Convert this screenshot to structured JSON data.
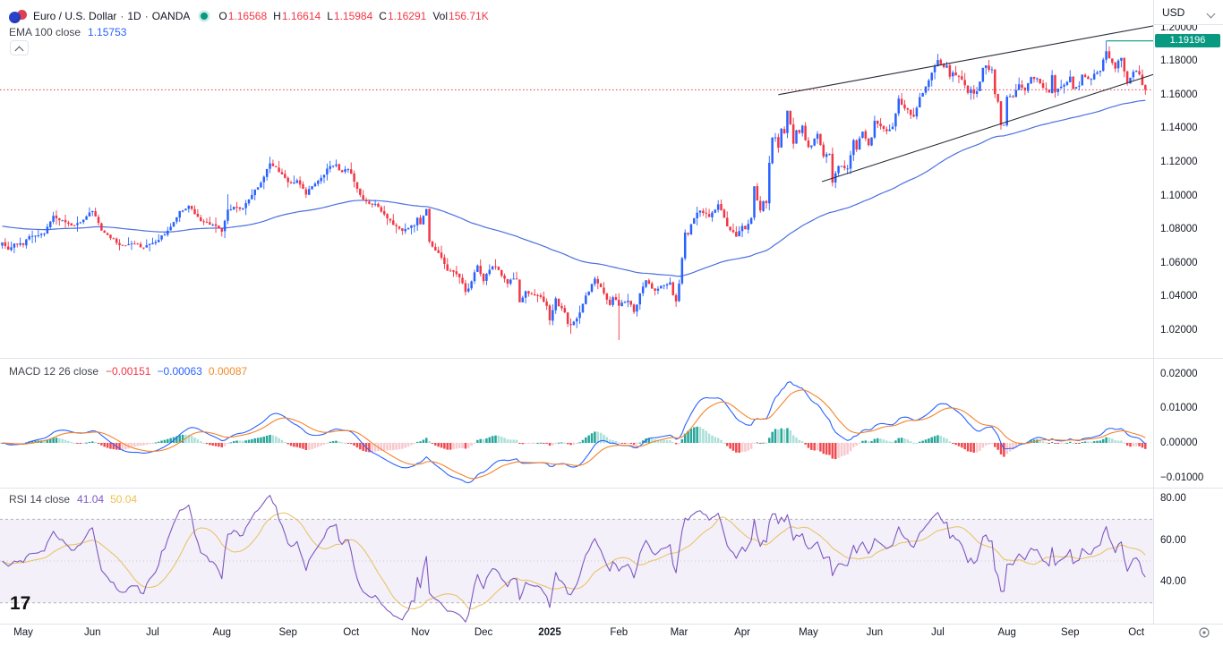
{
  "header": {
    "title": "Euro / U.S. Dollar",
    "dot": "·",
    "timeframe": "1D",
    "exchange": "OANDA",
    "ohlc": {
      "o_label": "O",
      "o": "1.16568",
      "h_label": "H",
      "h": "1.16614",
      "l_label": "L",
      "l": "1.15984",
      "c_label": "C",
      "c": "1.16291",
      "vol_label": "Vol",
      "vol": "156.71K"
    },
    "ema_row": {
      "label": "EMA 100 close",
      "value": "1.15753"
    }
  },
  "top_right": {
    "currency": "USD"
  },
  "price_scale": {
    "labels": [
      "1.20000",
      "1.18000",
      "1.16000",
      "1.14000",
      "1.12000",
      "1.10000",
      "1.08000",
      "1.06000",
      "1.04000",
      "1.02000"
    ],
    "badge": {
      "value": "1.19196",
      "color": "#089981"
    }
  },
  "macd_panel": {
    "label": "MACD 12 26 close",
    "hist_value": "−0.00151",
    "macd_value": "−0.00063",
    "signal_value": "0.00087",
    "scale_labels": [
      "0.02000",
      "0.01000",
      "0.00000",
      "−0.01000"
    ]
  },
  "rsi_panel": {
    "label": "RSI 14 close",
    "rsi_value": "41.04",
    "ma_value": "50.04",
    "scale_labels": [
      "80.00",
      "60.00",
      "40.00"
    ]
  },
  "time_axis": {
    "labels": [
      {
        "text": "May",
        "day": 0
      },
      {
        "text": "Jun",
        "day": 23
      },
      {
        "text": "Jul",
        "day": 43
      },
      {
        "text": "Aug",
        "day": 66
      },
      {
        "text": "Sep",
        "day": 88
      },
      {
        "text": "Oct",
        "day": 109
      },
      {
        "text": "Nov",
        "day": 132
      },
      {
        "text": "Dec",
        "day": 153
      },
      {
        "text": "2025",
        "day": 175,
        "bold": true
      },
      {
        "text": "Feb",
        "day": 198
      },
      {
        "text": "Mar",
        "day": 218
      },
      {
        "text": "Apr",
        "day": 239
      },
      {
        "text": "May",
        "day": 261
      },
      {
        "text": "Jun",
        "day": 283
      },
      {
        "text": "Jul",
        "day": 304
      },
      {
        "text": "Aug",
        "day": 327
      },
      {
        "text": "Sep",
        "day": 348
      },
      {
        "text": "Oct",
        "day": 370
      }
    ]
  },
  "colors": {
    "up": "#2962FF",
    "down": "#F23645",
    "ema": "#4A6FE0",
    "macd_line": "#2962FF",
    "signal_line": "#F4842C",
    "hist_pos": "#26A69A",
    "hist_pos_weak": "#ACE0D9",
    "hist_neg": "#F0494F",
    "hist_neg_weak": "#F8C9CE",
    "rsi_line": "#7E57C2",
    "rsi_ma": "#E9C46A",
    "rsi_band_fill": "rgba(126,87,194,0.09)",
    "trendline": "#2A2E39",
    "price_line": "#F23645",
    "high_line": "#089981"
  },
  "chart_data": {
    "type": "candlestick",
    "symbol": "EUR/USD",
    "exchange": "OANDA",
    "timeframe": "1D",
    "last_ohlc": {
      "open": 1.16568,
      "high": 1.16614,
      "low": 1.15984,
      "close": 1.16291,
      "volume": "156.71K"
    },
    "price_axis_range": [
      1.02,
      1.2
    ],
    "macd_axis_range": [
      -0.01,
      0.02
    ],
    "rsi_axis_range": [
      40,
      80
    ],
    "day_range": [
      -7,
      373
    ],
    "price_anchors": [
      [
        -7,
        1.0715
      ],
      [
        -5,
        1.069
      ],
      [
        -3,
        1.0722
      ],
      [
        0,
        1.0712
      ],
      [
        2,
        1.0765
      ],
      [
        5,
        1.0755
      ],
      [
        7,
        1.0772
      ],
      [
        10,
        1.0882
      ],
      [
        13,
        1.0862
      ],
      [
        16,
        1.0816
      ],
      [
        20,
        1.0848
      ],
      [
        23,
        1.0902
      ],
      [
        26,
        1.0802
      ],
      [
        28,
        1.0764
      ],
      [
        32,
        1.0706
      ],
      [
        36,
        1.0716
      ],
      [
        40,
        1.0688
      ],
      [
        43,
        1.0714
      ],
      [
        48,
        1.0786
      ],
      [
        52,
        1.0906
      ],
      [
        55,
        1.0936
      ],
      [
        60,
        1.084
      ],
      [
        64,
        1.0826
      ],
      [
        66,
        1.079
      ],
      [
        68,
        1.0908
      ],
      [
        70,
        1.0928
      ],
      [
        73,
        1.092
      ],
      [
        76,
        1.1012
      ],
      [
        80,
        1.1108
      ],
      [
        82,
        1.1188
      ],
      [
        84,
        1.1162
      ],
      [
        88,
        1.1068
      ],
      [
        91,
        1.108
      ],
      [
        94,
        1.1014
      ],
      [
        97,
        1.1076
      ],
      [
        101,
        1.116
      ],
      [
        104,
        1.118
      ],
      [
        106,
        1.1134
      ],
      [
        108,
        1.1162
      ],
      [
        109,
        1.1136
      ],
      [
        111,
        1.1032
      ],
      [
        113,
        1.0976
      ],
      [
        118,
        1.0938
      ],
      [
        121,
        1.0862
      ],
      [
        123,
        1.0832
      ],
      [
        126,
        1.0782
      ],
      [
        130,
        1.0826
      ],
      [
        131,
        1.088
      ],
      [
        132,
        1.0836
      ],
      [
        134,
        1.0928
      ],
      [
        135,
        1.0732
      ],
      [
        138,
        1.0662
      ],
      [
        141,
        1.0564
      ],
      [
        143,
        1.0542
      ],
      [
        146,
        1.0476
      ],
      [
        147,
        1.042
      ],
      [
        149,
        1.0488
      ],
      [
        151,
        1.0576
      ],
      [
        153,
        1.05
      ],
      [
        156,
        1.0588
      ],
      [
        158,
        1.0556
      ],
      [
        161,
        1.0468
      ],
      [
        162,
        1.0502
      ],
      [
        164,
        1.0492
      ],
      [
        165,
        1.0355
      ],
      [
        167,
        1.0432
      ],
      [
        170,
        1.0422
      ],
      [
        172,
        1.0406
      ],
      [
        174,
        1.0355
      ],
      [
        175,
        1.0268
      ],
      [
        177,
        1.0392
      ],
      [
        178,
        1.0342
      ],
      [
        180,
        1.0302
      ],
      [
        181,
        1.0246
      ],
      [
        182,
        1.0224
      ],
      [
        185,
        1.0302
      ],
      [
        187,
        1.0416
      ],
      [
        190,
        1.0496
      ],
      [
        193,
        1.0422
      ],
      [
        195,
        1.0362
      ],
      [
        196,
        1.039
      ],
      [
        198,
        1.0346
      ],
      [
        201,
        1.0384
      ],
      [
        203,
        1.0308
      ],
      [
        206,
        1.0466
      ],
      [
        207,
        1.0492
      ],
      [
        210,
        1.0426
      ],
      [
        213,
        1.0468
      ],
      [
        215,
        1.0484
      ],
      [
        216,
        1.0398
      ],
      [
        217,
        1.0376
      ],
      [
        218,
        1.0486
      ],
      [
        219,
        1.0626
      ],
      [
        220,
        1.0788
      ],
      [
        221,
        1.0784
      ],
      [
        222,
        1.0834
      ],
      [
        225,
        1.0916
      ],
      [
        228,
        1.0878
      ],
      [
        231,
        1.0944
      ],
      [
        234,
        1.0816
      ],
      [
        237,
        1.0756
      ],
      [
        239,
        1.0826
      ],
      [
        240,
        1.0794
      ],
      [
        242,
        1.0852
      ],
      [
        243,
        1.105
      ],
      [
        244,
        1.0962
      ],
      [
        245,
        1.0906
      ],
      [
        246,
        1.0956
      ],
      [
        247,
        1.0946
      ],
      [
        248,
        1.1198
      ],
      [
        249,
        1.1354
      ],
      [
        250,
        1.135
      ],
      [
        251,
        1.1284
      ],
      [
        252,
        1.1396
      ],
      [
        253,
        1.1368
      ],
      [
        254,
        1.151
      ],
      [
        255,
        1.1422
      ],
      [
        256,
        1.1316
      ],
      [
        257,
        1.1388
      ],
      [
        258,
        1.1366
      ],
      [
        259,
        1.142
      ],
      [
        260,
        1.133
      ],
      [
        261,
        1.1292
      ],
      [
        262,
        1.1298
      ],
      [
        264,
        1.1366
      ],
      [
        266,
        1.123
      ],
      [
        268,
        1.125
      ],
      [
        269,
        1.1088
      ],
      [
        271,
        1.1174
      ],
      [
        273,
        1.1162
      ],
      [
        274,
        1.1164
      ],
      [
        276,
        1.133
      ],
      [
        277,
        1.128
      ],
      [
        279,
        1.1386
      ],
      [
        281,
        1.1292
      ],
      [
        282,
        1.1346
      ],
      [
        283,
        1.144
      ],
      [
        285,
        1.1416
      ],
      [
        287,
        1.1396
      ],
      [
        289,
        1.1422
      ],
      [
        291,
        1.1582
      ],
      [
        292,
        1.1548
      ],
      [
        294,
        1.1516
      ],
      [
        296,
        1.1468
      ],
      [
        297,
        1.1524
      ],
      [
        298,
        1.1578
      ],
      [
        299,
        1.161
      ],
      [
        300,
        1.166
      ],
      [
        301,
        1.17
      ],
      [
        302,
        1.1748
      ],
      [
        303,
        1.1786
      ],
      [
        304,
        1.1804
      ],
      [
        306,
        1.1758
      ],
      [
        307,
        1.1776
      ],
      [
        308,
        1.171
      ],
      [
        309,
        1.1726
      ],
      [
        311,
        1.17
      ],
      [
        312,
        1.169
      ],
      [
        314,
        1.1602
      ],
      [
        315,
        1.1634
      ],
      [
        316,
        1.1596
      ],
      [
        317,
        1.1626
      ],
      [
        319,
        1.1754
      ],
      [
        320,
        1.1774
      ],
      [
        321,
        1.1746
      ],
      [
        322,
        1.1742
      ],
      [
        323,
        1.159
      ],
      [
        324,
        1.1546
      ],
      [
        325,
        1.1406
      ],
      [
        326,
        1.1418
      ],
      [
        327,
        1.1586
      ],
      [
        329,
        1.158
      ],
      [
        331,
        1.1664
      ],
      [
        333,
        1.1618
      ],
      [
        335,
        1.1704
      ],
      [
        337,
        1.1702
      ],
      [
        339,
        1.1648
      ],
      [
        341,
        1.1604
      ],
      [
        342,
        1.1718
      ],
      [
        343,
        1.162
      ],
      [
        345,
        1.1644
      ],
      [
        347,
        1.168
      ],
      [
        348,
        1.1712
      ],
      [
        349,
        1.1642
      ],
      [
        351,
        1.1652
      ],
      [
        352,
        1.1716
      ],
      [
        354,
        1.1706
      ],
      [
        355,
        1.1696
      ],
      [
        357,
        1.1734
      ],
      [
        358,
        1.1734
      ],
      [
        360,
        1.1864
      ],
      [
        361,
        1.1812
      ],
      [
        362,
        1.1786
      ],
      [
        363,
        1.1748
      ],
      [
        364,
        1.1802
      ],
      [
        365,
        1.1814
      ],
      [
        366,
        1.1738
      ],
      [
        367,
        1.1668
      ],
      [
        368,
        1.1702
      ],
      [
        369,
        1.1726
      ],
      [
        370,
        1.1732
      ],
      [
        371,
        1.1716
      ],
      [
        372,
        1.1657
      ],
      [
        373,
        1.1629
      ]
    ],
    "special_candles": [
      {
        "day": 372,
        "c": 1.16568
      },
      {
        "day": 373,
        "o": 1.16568,
        "h": 1.16614,
        "l": 1.15984,
        "c": 1.16291
      },
      {
        "day": 360,
        "h": 1.19196
      },
      {
        "day": 182,
        "l": 1.0178
      },
      {
        "day": 198,
        "l": 1.0141
      },
      {
        "day": 325,
        "l": 1.1392
      },
      {
        "day": 135,
        "o": 1.0922
      },
      {
        "day": 68,
        "h": 1.1008
      }
    ],
    "trendlines": [
      {
        "name": "upper",
        "d1": 251,
        "p1": 1.16,
        "d2": 376,
        "p2": 1.201
      },
      {
        "name": "lower",
        "d1": 265.5,
        "p1": 1.1083,
        "d2": 376,
        "p2": 1.1722
      }
    ],
    "price_line": 1.16291,
    "high_line": {
      "price": 1.19196,
      "from_day": 360
    },
    "indicators": {
      "ema_period": 100,
      "ema_seed": 1.082,
      "macd": [
        12,
        26,
        9
      ],
      "rsi_period": 14,
      "rsi_ma_period": 14,
      "rsi_bands": [
        70,
        50,
        30
      ]
    }
  }
}
